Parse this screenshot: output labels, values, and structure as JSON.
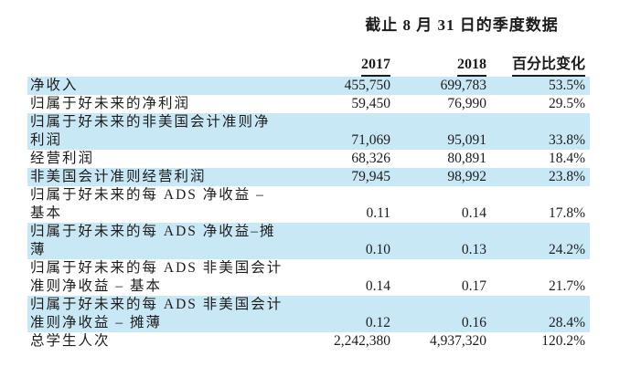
{
  "title": "截止 8 月 31 日的季度数据",
  "table": {
    "columns": {
      "y2017": "2017",
      "y2018": "2018",
      "change": "百分比变化"
    },
    "rows": [
      {
        "label_lines": [
          "净收入"
        ],
        "v2017": "455,750",
        "v2018": "699,783",
        "change": "53.5%"
      },
      {
        "label_lines": [
          "归属于好未来的净利润"
        ],
        "v2017": "59,450",
        "v2018": "76,990",
        "change": "29.5%"
      },
      {
        "label_lines": [
          "归属于好未来的非美国会计准则净",
          "利润"
        ],
        "v2017": "71,069",
        "v2018": "95,091",
        "change": "33.8%"
      },
      {
        "label_lines": [
          "经营利润"
        ],
        "v2017": "68,326",
        "v2018": "80,891",
        "change": "18.4%"
      },
      {
        "label_lines": [
          "非美国会计准则经营利润"
        ],
        "v2017": "79,945",
        "v2018": "98,992",
        "change": "23.8%"
      },
      {
        "label_lines": [
          "归属于好未来的每 ADS 净收益 –",
          "基本"
        ],
        "v2017": "0.11",
        "v2018": "0.14",
        "change": "17.8%"
      },
      {
        "label_lines": [
          "归属于好未来的每 ADS 净收益–摊",
          "薄"
        ],
        "v2017": "0.10",
        "v2018": "0.13",
        "change": "24.2%"
      },
      {
        "label_lines": [
          "归属于好未来的每 ADS 非美国会计",
          "准则净收益 – 基本"
        ],
        "v2017": "0.14",
        "v2018": "0.17",
        "change": "21.7%"
      },
      {
        "label_lines": [
          "归属于好未来的每 ADS 非美国会计",
          "准则净收益 – 摊薄"
        ],
        "v2017": "0.12",
        "v2018": "0.16",
        "change": "28.4%"
      },
      {
        "label_lines": [
          "总学生人次"
        ],
        "v2017": "2,242,380",
        "v2018": "4,937,320",
        "change": "120.2%"
      }
    ]
  },
  "colors": {
    "row_highlight": "#c9e8f6",
    "text": "#1c1c1c"
  }
}
